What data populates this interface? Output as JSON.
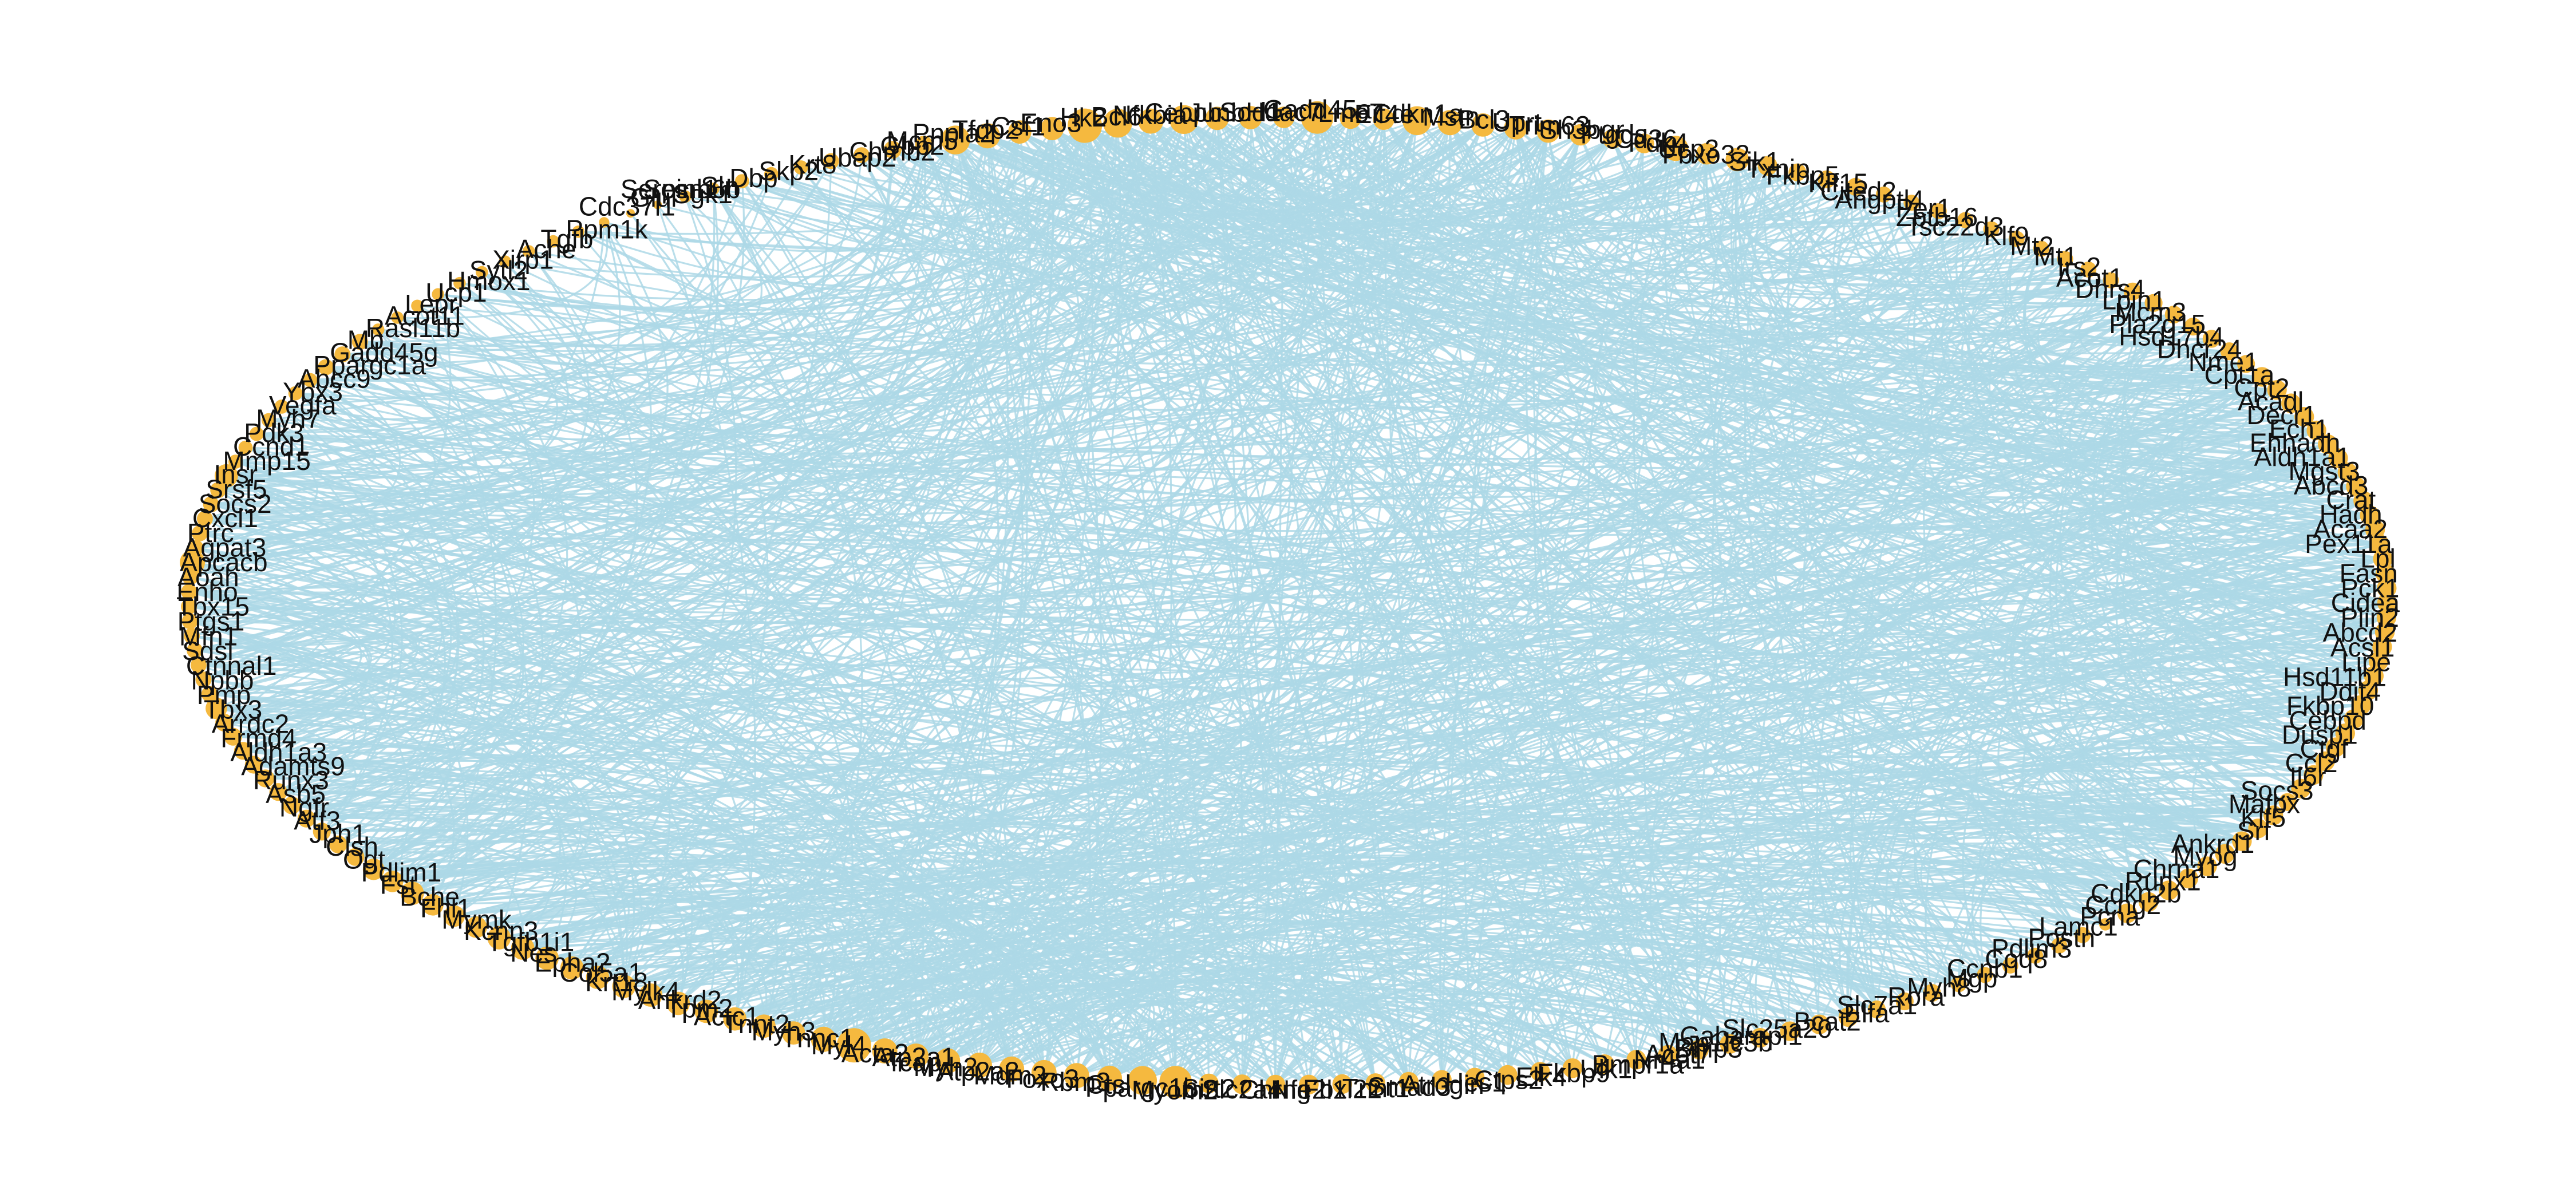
{
  "diagram": {
    "type": "circular-network",
    "edge_color": "#add8e6",
    "node_color": "#f5b93f",
    "label_color": "#111111",
    "nodes": [
      {
        "id": "Serpinb6b",
        "label": "Serpinb6b",
        "deg": 1
      },
      {
        "id": "Sgk1",
        "label": "Sgk1",
        "deg": 3
      },
      {
        "id": "Sln",
        "label": "Sln",
        "deg": 3
      },
      {
        "id": "Dbp",
        "label": "Dbp",
        "deg": 4
      },
      {
        "id": "Skp2",
        "label": "Skp2",
        "deg": 4
      },
      {
        "id": "Krt8",
        "label": "Krt8",
        "deg": 4
      },
      {
        "id": "Ubap2",
        "label": "Ubap2",
        "deg": 5
      },
      {
        "id": "Chrnb2",
        "label": "Chrnb2",
        "deg": 5
      },
      {
        "id": "Gbp2",
        "label": "Gbp2",
        "deg": 6
      },
      {
        "id": "Mcm5",
        "label": "Mcm5",
        "deg": 6
      },
      {
        "id": "Pnpla2",
        "label": "Pnpla2",
        "deg": 12
      },
      {
        "id": "Tfdp2",
        "label": "Tfdp2",
        "deg": 10
      },
      {
        "id": "Csf1",
        "label": "Csf1",
        "deg": 9
      },
      {
        "id": "Eno3",
        "label": "Eno3",
        "deg": 9
      },
      {
        "id": "Hk2",
        "label": "Hk2",
        "deg": 16
      },
      {
        "id": "Bcl6",
        "label": "Bcl6",
        "deg": 12
      },
      {
        "id": "Nfkbia",
        "label": "Nfkbia",
        "deg": 10
      },
      {
        "id": "Cebpb",
        "label": "Cebpb",
        "deg": 12
      },
      {
        "id": "Junb",
        "label": "Junb",
        "deg": 9
      },
      {
        "id": "Sod1",
        "label": "Sod1",
        "deg": 9
      },
      {
        "id": "Hdac7",
        "label": "Hdac7",
        "deg": 8
      },
      {
        "id": "Gadd45a",
        "label": "Gadd45a",
        "deg": 14
      },
      {
        "id": "Lmo7",
        "label": "Lmo7",
        "deg": 8
      },
      {
        "id": "Eif4e",
        "label": "Eif4e",
        "deg": 8
      },
      {
        "id": "Cdkn1a",
        "label": "Cdkn1a",
        "deg": 12
      },
      {
        "id": "Mstn",
        "label": "Mstn",
        "deg": 10
      },
      {
        "id": "Bcl3",
        "label": "Bcl3",
        "deg": 9
      },
      {
        "id": "Uprt",
        "label": "Uprt",
        "deg": 9
      },
      {
        "id": "Trim63",
        "label": "Trim63",
        "deg": 9
      },
      {
        "id": "Sh3bgr",
        "label": "Sh3bgr",
        "deg": 8
      },
      {
        "id": "Ptgds",
        "label": "Ptgds",
        "deg": 7
      },
      {
        "id": "Cd36",
        "label": "Cd36",
        "deg": 7
      },
      {
        "id": "Pdk4",
        "label": "Pdk4",
        "deg": 10
      },
      {
        "id": "Ucp3",
        "label": "Ucp3",
        "deg": 8
      },
      {
        "id": "Fbxo32",
        "label": "Fbxo32",
        "deg": 9
      },
      {
        "id": "Sik1",
        "label": "Sik1",
        "deg": 7
      },
      {
        "id": "Txnip",
        "label": "Txnip",
        "deg": 6
      },
      {
        "id": "Fkbp5",
        "label": "Fkbp5",
        "deg": 6
      },
      {
        "id": "Klf15",
        "label": "Klf15",
        "deg": 6
      },
      {
        "id": "Cited2",
        "label": "Cited2",
        "deg": 5
      },
      {
        "id": "Angptl4",
        "label": "Angptl4",
        "deg": 5
      },
      {
        "id": "Per1",
        "label": "Per1",
        "deg": 5
      },
      {
        "id": "Zbtb16",
        "label": "Zbtb16",
        "deg": 5
      },
      {
        "id": "Tsc22d3",
        "label": "Tsc22d3",
        "deg": 5
      },
      {
        "id": "Klf9",
        "label": "Klf9",
        "deg": 5
      },
      {
        "id": "Mt2",
        "label": "Mt2",
        "deg": 5
      },
      {
        "id": "Mt1",
        "label": "Mt1",
        "deg": 5
      },
      {
        "id": "Irs2",
        "label": "Irs2",
        "deg": 5
      },
      {
        "id": "Acot1",
        "label": "Acot1",
        "deg": 5
      },
      {
        "id": "Dhrs4",
        "label": "Dhrs4",
        "deg": 6
      },
      {
        "id": "Lpin1",
        "label": "Lpin1",
        "deg": 6
      },
      {
        "id": "Mcm3",
        "label": "Mcm3",
        "deg": 6
      },
      {
        "id": "Pla2g15",
        "label": "Pla2g15",
        "deg": 6
      },
      {
        "id": "Hsd17b4",
        "label": "Hsd17b4",
        "deg": 6
      },
      {
        "id": "Dhcr24",
        "label": "Dhcr24",
        "deg": 6
      },
      {
        "id": "Nme1",
        "label": "Nme1",
        "deg": 6
      },
      {
        "id": "Cpt1a",
        "label": "Cpt1a",
        "deg": 7
      },
      {
        "id": "Cpt2",
        "label": "Cpt2",
        "deg": 7
      },
      {
        "id": "Acadl",
        "label": "Acadl",
        "deg": 7
      },
      {
        "id": "Decr1",
        "label": "Decr1",
        "deg": 7
      },
      {
        "id": "Ech1",
        "label": "Ech1",
        "deg": 7
      },
      {
        "id": "Ehhadh",
        "label": "Ehhadh",
        "deg": 7
      },
      {
        "id": "Aldh1a1",
        "label": "Aldh1a1",
        "deg": 7
      },
      {
        "id": "Mgst3",
        "label": "Mgst3",
        "deg": 7
      },
      {
        "id": "Abcd3",
        "label": "Abcd3",
        "deg": 7
      },
      {
        "id": "Crat",
        "label": "Crat",
        "deg": 7
      },
      {
        "id": "Hadh",
        "label": "Hadh",
        "deg": 7
      },
      {
        "id": "Acaa2",
        "label": "Acaa2",
        "deg": 7
      },
      {
        "id": "Pex11a",
        "label": "Pex11a",
        "deg": 7
      },
      {
        "id": "Lpl",
        "label": "Lpl",
        "deg": 7
      },
      {
        "id": "Fasn",
        "label": "Fasn",
        "deg": 7
      },
      {
        "id": "Pck1",
        "label": "Pck1",
        "deg": 7
      },
      {
        "id": "Cidea",
        "label": "Cidea",
        "deg": 7
      },
      {
        "id": "Plin2",
        "label": "Plin2",
        "deg": 7
      },
      {
        "id": "Abcd2",
        "label": "Abcd2",
        "deg": 7
      },
      {
        "id": "Acsl1",
        "label": "Acsl1",
        "deg": 7
      },
      {
        "id": "Lipe",
        "label": "Lipe",
        "deg": 7
      },
      {
        "id": "Hsd11b1",
        "label": "Hsd11b1",
        "deg": 7
      },
      {
        "id": "Ddit4",
        "label": "Ddit4",
        "deg": 7
      },
      {
        "id": "Fkbp10",
        "label": "Fkbp10",
        "deg": 7
      },
      {
        "id": "Cebpd",
        "label": "Cebpd",
        "deg": 7
      },
      {
        "id": "Dusp1",
        "label": "Dusp1",
        "deg": 7
      },
      {
        "id": "Ctgf",
        "label": "Ctgf",
        "deg": 7
      },
      {
        "id": "Ccl2",
        "label": "Ccl2",
        "deg": 7
      },
      {
        "id": "Il6r",
        "label": "Il6r",
        "deg": 7
      },
      {
        "id": "Socs3",
        "label": "Socs3",
        "deg": 7
      },
      {
        "id": "Mafbx",
        "label": "Mafbx",
        "deg": 6
      },
      {
        "id": "Klf5",
        "label": "Klf5",
        "deg": 7
      },
      {
        "id": "Srf",
        "label": "Srf",
        "deg": 7
      },
      {
        "id": "Ankrd1",
        "label": "Ankrd1",
        "deg": 7
      },
      {
        "id": "Myog",
        "label": "Myog",
        "deg": 7
      },
      {
        "id": "Chrna1",
        "label": "Chrna1",
        "deg": 7
      },
      {
        "id": "Runx1",
        "label": "Runx1",
        "deg": 7
      },
      {
        "id": "Cdkn2b",
        "label": "Cdkn2b",
        "deg": 7
      },
      {
        "id": "Ccng2",
        "label": "Ccng2",
        "deg": 7
      },
      {
        "id": "Pcna",
        "label": "Pcna",
        "deg": 7
      },
      {
        "id": "Lamc1",
        "label": "Lamc1",
        "deg": 3
      },
      {
        "id": "Postn",
        "label": "Postn",
        "deg": 5
      },
      {
        "id": "Pdlim3",
        "label": "Pdlim3",
        "deg": 5
      },
      {
        "id": "Coq8",
        "label": "Coq8",
        "deg": 5
      },
      {
        "id": "Ccnb1",
        "label": "Ccnb1",
        "deg": 5
      },
      {
        "id": "Mgp",
        "label": "Mgp",
        "deg": 5
      },
      {
        "id": "Myh8",
        "label": "Myh8",
        "deg": 5
      },
      {
        "id": "Rora",
        "label": "Rora",
        "deg": 6
      },
      {
        "id": "Slc7a1",
        "label": "Slc7a1",
        "deg": 6
      },
      {
        "id": "Elfa",
        "label": "Elfa",
        "deg": 6
      },
      {
        "id": "Bcat2",
        "label": "Bcat2",
        "deg": 7
      },
      {
        "id": "Slc25a20",
        "label": "Slc25a20",
        "deg": 7
      },
      {
        "id": "Gabarapl1",
        "label": "Gabarapl1",
        "deg": 7
      },
      {
        "id": "Map1lc3b",
        "label": "Map1lc3b",
        "deg": 7
      },
      {
        "id": "Bnip3",
        "label": "Bnip3",
        "deg": 7
      },
      {
        "id": "Acot7",
        "label": "Acot7",
        "deg": 7
      },
      {
        "id": "Nr4a1",
        "label": "Nr4a1",
        "deg": 7
      },
      {
        "id": "Bmpr1a",
        "label": "Bmpr1a",
        "deg": 7
      },
      {
        "id": "Ulk1",
        "label": "Ulk1",
        "deg": 7
      },
      {
        "id": "Fkbp9",
        "label": "Fkbp9",
        "deg": 7
      },
      {
        "id": "Elk4",
        "label": "Elk4",
        "deg": 7
      },
      {
        "id": "Ctps2",
        "label": "Ctps2",
        "deg": 7
      },
      {
        "id": "Hes1",
        "label": "Hes1",
        "deg": 7
      },
      {
        "id": "Atrogin",
        "label": "Atrogin",
        "deg": 7
      },
      {
        "id": "Smad3",
        "label": "Smad3",
        "deg": 7
      },
      {
        "id": "Tnnt1",
        "label": "Tnnt1",
        "deg": 7
      },
      {
        "id": "Fbxl22",
        "label": "Fbxl22",
        "deg": 7
      },
      {
        "id": "Nfe2l1",
        "label": "Nfe2l1",
        "deg": 7
      },
      {
        "id": "Chrng",
        "label": "Chrng",
        "deg": 7
      },
      {
        "id": "Slc2a4",
        "label": "Slc2a4",
        "deg": 7
      },
      {
        "id": "Sirt2",
        "label": "Sirt2",
        "deg": 7
      },
      {
        "id": "Myom2",
        "label": "Myom2",
        "deg": 14
      },
      {
        "id": "Ppargc1b",
        "label": "Ppargc1b",
        "deg": 12
      },
      {
        "id": "Ctsl",
        "label": "Ctsl",
        "deg": 10
      },
      {
        "id": "Rbm3",
        "label": "Rbm3",
        "deg": 10
      },
      {
        "id": "Foxo3",
        "label": "Foxo3",
        "deg": 10
      },
      {
        "id": "Mdm2",
        "label": "Mdm2",
        "deg": 10
      },
      {
        "id": "Atp2a2",
        "label": "Atp2a2",
        "deg": 10
      },
      {
        "id": "Myh2",
        "label": "Myh2",
        "deg": 10
      },
      {
        "id": "Tcap",
        "label": "Tcap",
        "deg": 10
      },
      {
        "id": "Atp2a1",
        "label": "Atp2a1",
        "deg": 10
      },
      {
        "id": "Acta2",
        "label": "Acta2",
        "deg": 16
      },
      {
        "id": "Myl4",
        "label": "Myl4",
        "deg": 10
      },
      {
        "id": "Tnnc1",
        "label": "Tnnc1",
        "deg": 9
      },
      {
        "id": "Myh3",
        "label": "Myh3",
        "deg": 9
      },
      {
        "id": "Tnnt2",
        "label": "Tnnt2",
        "deg": 9
      },
      {
        "id": "Actc1",
        "label": "Actc1",
        "deg": 9
      },
      {
        "id": "Tpm2",
        "label": "Tpm2",
        "deg": 9
      },
      {
        "id": "Ankrd2",
        "label": "Ankrd2",
        "deg": 9
      },
      {
        "id": "Mylk4",
        "label": "Mylk4",
        "deg": 9
      },
      {
        "id": "Krt18",
        "label": "Krt18",
        "deg": 9
      },
      {
        "id": "Col5a1",
        "label": "Col5a1",
        "deg": 9
      },
      {
        "id": "Epha2",
        "label": "Epha2",
        "deg": 9
      },
      {
        "id": "Nes",
        "label": "Nes",
        "deg": 9
      },
      {
        "id": "Tgfb1i1",
        "label": "Tgfb1i1",
        "deg": 9
      },
      {
        "id": "Kcnn3",
        "label": "Kcnn3",
        "deg": 8
      },
      {
        "id": "Mymk",
        "label": "Mymk",
        "deg": 8
      },
      {
        "id": "Fhl1",
        "label": "Fhl1",
        "deg": 8
      },
      {
        "id": "Bche",
        "label": "Bche",
        "deg": 9
      },
      {
        "id": "Fst",
        "label": "Fst",
        "deg": 8
      },
      {
        "id": "Pdlim1",
        "label": "Pdlim1",
        "deg": 8
      },
      {
        "id": "Ogt",
        "label": "Ogt",
        "deg": 6
      },
      {
        "id": "Clsh",
        "label": "Clsh",
        "deg": 6
      },
      {
        "id": "Jph1",
        "label": "Jph1",
        "deg": 6
      },
      {
        "id": "Atf3",
        "label": "Atf3",
        "deg": 6
      },
      {
        "id": "Ngfr",
        "label": "Ngfr",
        "deg": 6
      },
      {
        "id": "Asb5",
        "label": "Asb5",
        "deg": 6
      },
      {
        "id": "Runx3",
        "label": "Runx3",
        "deg": 6
      },
      {
        "id": "Adamts9",
        "label": "Adamts9",
        "deg": 6
      },
      {
        "id": "Aldh1a3",
        "label": "Aldh1a3",
        "deg": 6
      },
      {
        "id": "Frmd4",
        "label": "Frmd4",
        "deg": 6
      },
      {
        "id": "Arrdc2",
        "label": "Arrdc2",
        "deg": 6
      },
      {
        "id": "Tbx3",
        "label": "Tbx3",
        "deg": 8
      },
      {
        "id": "Pmp",
        "label": "Pmp",
        "deg": 5
      },
      {
        "id": "Npbb",
        "label": "Npbb",
        "deg": 5
      },
      {
        "id": "Ctnnal1",
        "label": "Ctnnal1",
        "deg": 5
      },
      {
        "id": "Sdsl",
        "label": "Sdsl",
        "deg": 5
      },
      {
        "id": "Mfn1",
        "label": "Mfn1",
        "deg": 5
      },
      {
        "id": "Ptgs1",
        "label": "Ptgs1",
        "deg": 5
      },
      {
        "id": "Tbx15",
        "label": "Tbx15",
        "deg": 5
      },
      {
        "id": "Enho",
        "label": "Enho",
        "deg": 5
      },
      {
        "id": "Aoah",
        "label": "Aoah",
        "deg": 5
      },
      {
        "id": "Apcacb",
        "label": "Apcacb",
        "deg": 10
      },
      {
        "id": "Agpat3",
        "label": "Agpat3",
        "deg": 5
      },
      {
        "id": "Ptrc",
        "label": "Ptrc",
        "deg": 5
      },
      {
        "id": "Cxcl1",
        "label": "Cxcl1",
        "deg": 5
      },
      {
        "id": "Socs2",
        "label": "Socs2",
        "deg": 5
      },
      {
        "id": "Srsf5",
        "label": "Srsf5",
        "deg": 5
      },
      {
        "id": "Insr",
        "label": "Insr",
        "deg": 9
      },
      {
        "id": "Mmp15",
        "label": "Mmp15",
        "deg": 4
      },
      {
        "id": "Ccnd1",
        "label": "Ccnd1",
        "deg": 4
      },
      {
        "id": "Pdk3",
        "label": "Pdk3",
        "deg": 4
      },
      {
        "id": "Myh7",
        "label": "Myh7",
        "deg": 4
      },
      {
        "id": "Vegfa",
        "label": "Vegfa",
        "deg": 4
      },
      {
        "id": "Ybx3",
        "label": "Ybx3",
        "deg": 4
      },
      {
        "id": "Abcc9",
        "label": "Abcc9",
        "deg": 4
      },
      {
        "id": "Ppargc1a",
        "label": "Ppargc1a",
        "deg": 5
      },
      {
        "id": "Gadd45g",
        "label": "Gadd45g",
        "deg": 5
      },
      {
        "id": "Mb",
        "label": "Mb",
        "deg": 5
      },
      {
        "id": "Rasl11b",
        "label": "Rasl11b",
        "deg": 3
      },
      {
        "id": "Acot11",
        "label": "Acot11",
        "deg": 3
      },
      {
        "id": "Lepr",
        "label": "Lepr",
        "deg": 3
      },
      {
        "id": "Ucp1",
        "label": "Ucp1",
        "deg": 3
      },
      {
        "id": "Hmox1",
        "label": "Hmox1",
        "deg": 3
      },
      {
        "id": "Sytl2",
        "label": "Sytl2",
        "deg": 3
      },
      {
        "id": "Xirp1",
        "label": "Xirp1",
        "deg": 3
      },
      {
        "id": "Ache",
        "label": "Ache",
        "deg": 3
      },
      {
        "id": "Tgfb",
        "label": "Tgfb",
        "deg": 3
      },
      {
        "id": "Ppm1k",
        "label": "Ppm1k",
        "deg": 3
      },
      {
        "id": "Cdc37l1",
        "label": "Cdc37l1",
        "deg": 2
      },
      {
        "id": "Glul",
        "label": "Glul",
        "deg": 1
      },
      {
        "id": "Sesn1",
        "label": "Sesn1",
        "deg": 1
      }
    ]
  }
}
